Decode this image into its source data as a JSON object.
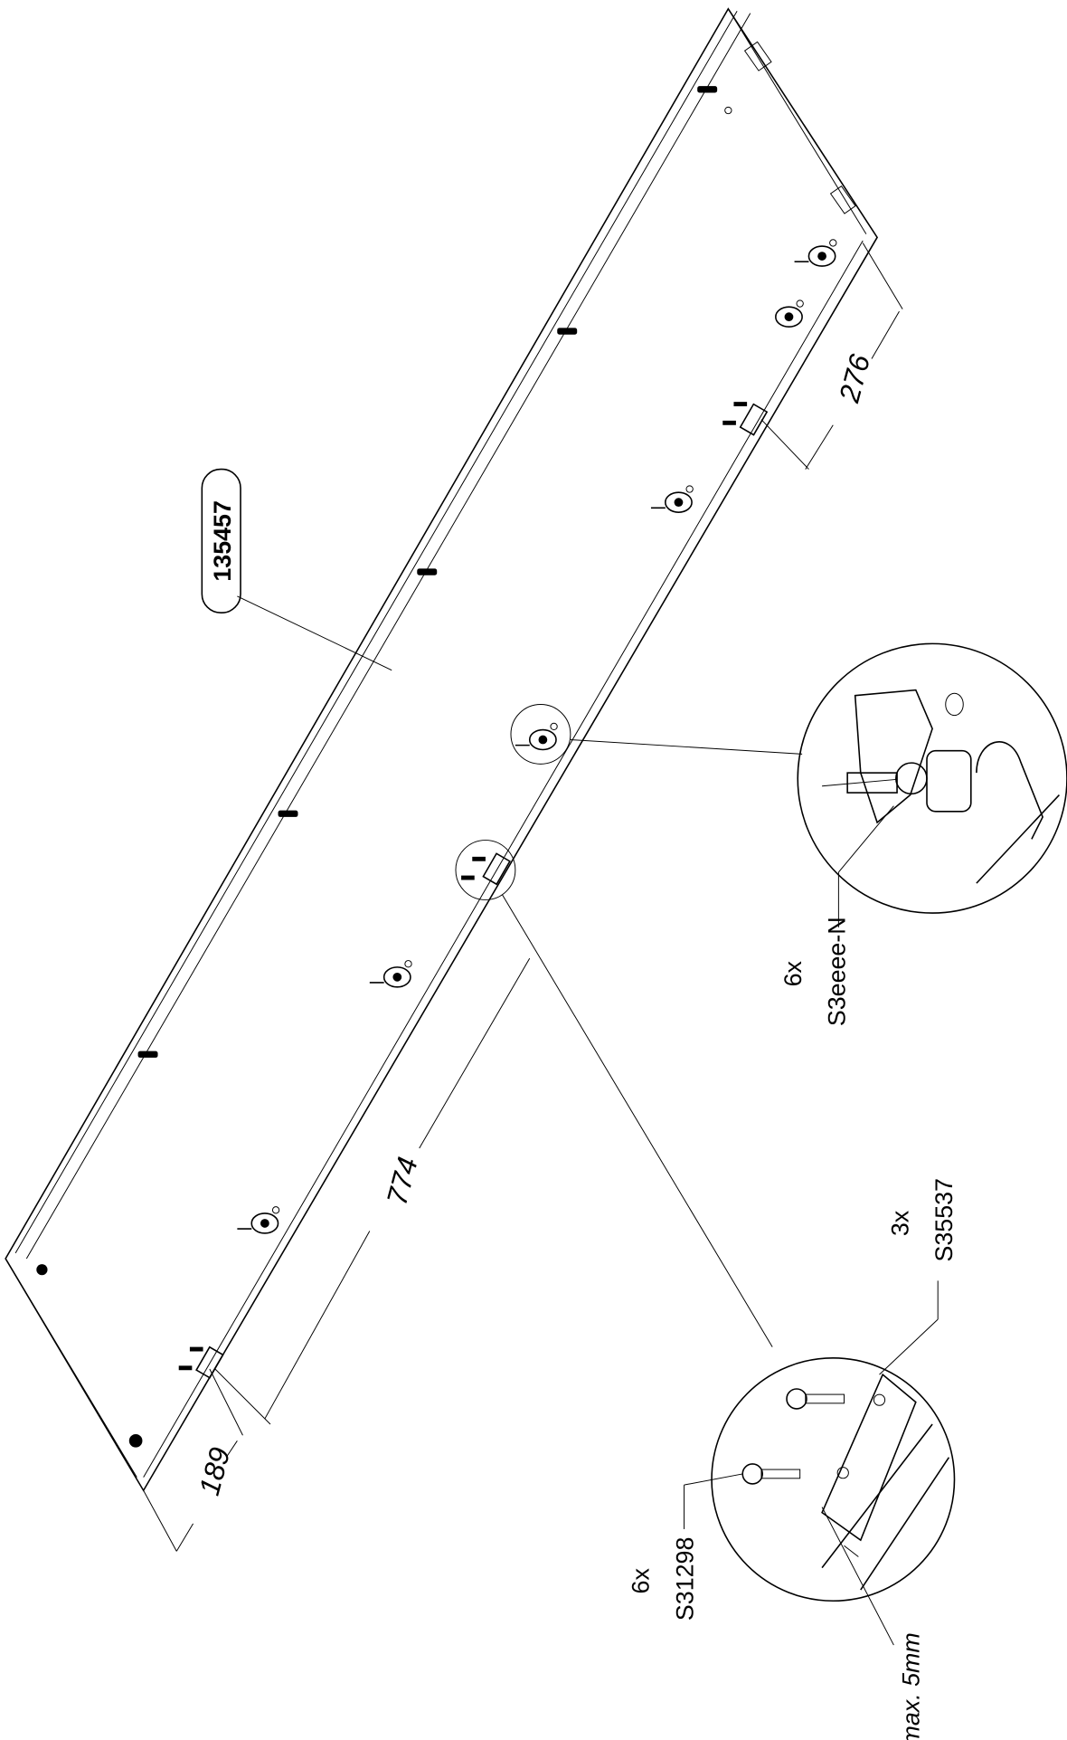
{
  "part_number": "135457",
  "dimensions": [
    276,
    774,
    189
  ],
  "details": [
    {
      "quantity": "6x",
      "part": "S3eeee-N"
    },
    {
      "quantity": "3x",
      "part": "S35537"
    },
    {
      "quantity": "6x",
      "part": "S31298"
    }
  ],
  "note": "max. 5mm"
}
